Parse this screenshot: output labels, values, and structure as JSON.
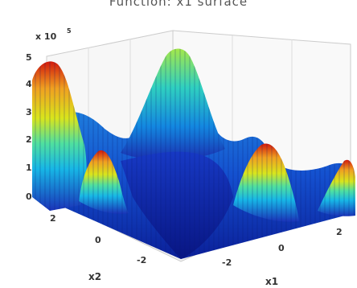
{
  "chart_data": {
    "type": "surface3d",
    "title": "Function: x1 surface",
    "xlabel": "x1",
    "ylabel": "x2",
    "zlabel": "",
    "z_multiplier": "x 10",
    "z_exponent": "5",
    "z_ticks": [
      "0",
      "1",
      "2",
      "3",
      "4",
      "5"
    ],
    "x1_ticks": [
      "-2",
      "0",
      "2"
    ],
    "x2_ticks": [
      "2",
      "0",
      "-2"
    ],
    "xlim": [
      -3,
      3
    ],
    "ylim": [
      -3,
      3
    ],
    "zlim": [
      0,
      5
    ],
    "colormap": "jet",
    "grid": true,
    "peaks": [
      {
        "x1": -3,
        "x2": 3,
        "z": 4.8
      },
      {
        "x1": 2.7,
        "x2": 2.7,
        "z": 4.6
      },
      {
        "x1": 0.5,
        "x2": -2.5,
        "z": 2.7
      },
      {
        "x1": -2,
        "x2": 1,
        "z": 2.4
      },
      {
        "x1": 3,
        "x2": -3,
        "z": 1.7
      }
    ]
  }
}
